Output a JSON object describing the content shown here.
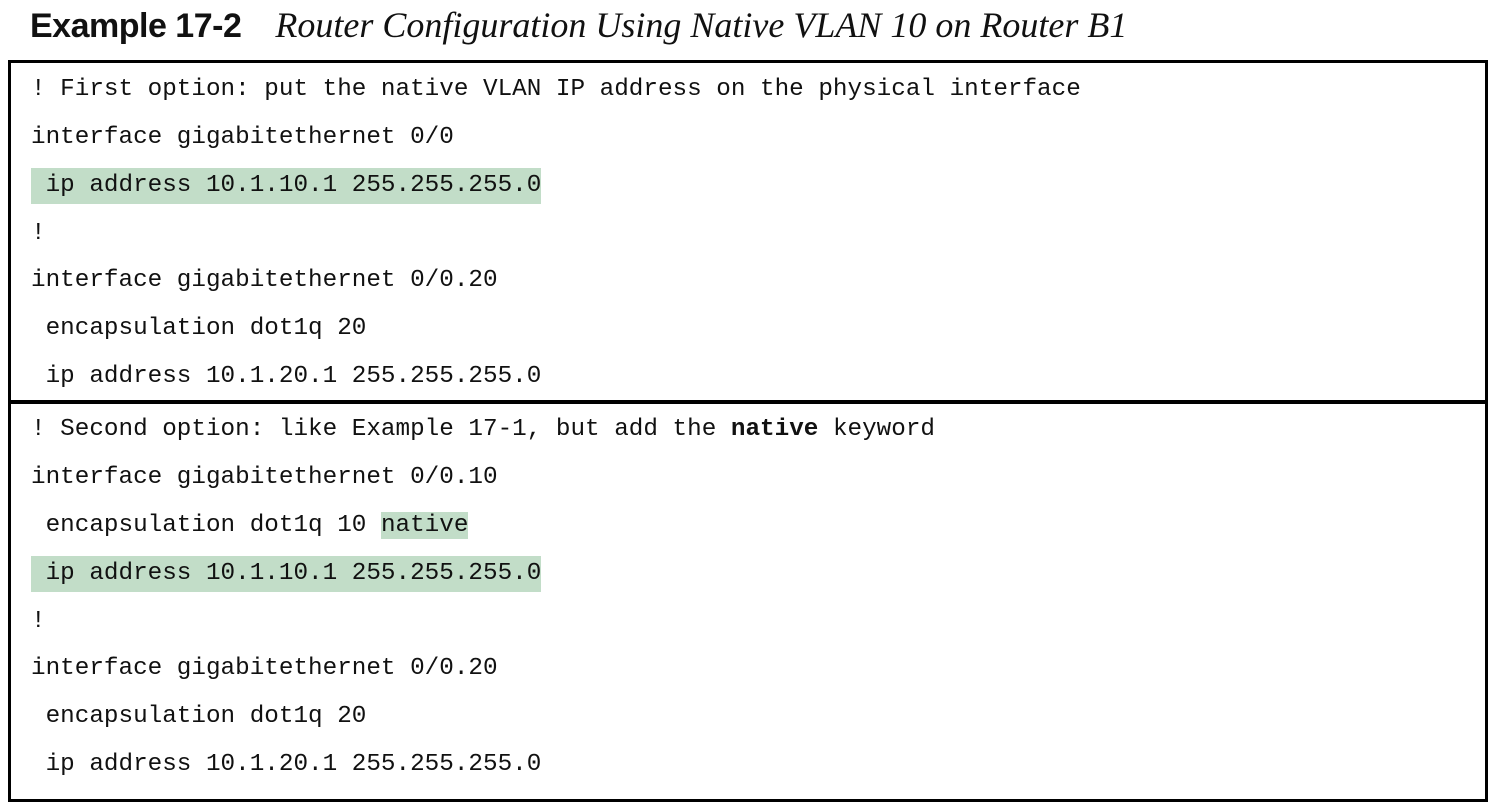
{
  "caption": {
    "label": "Example 17-2",
    "title": "Router Configuration Using Native VLAN 10 on Router B1"
  },
  "colors": {
    "highlight": "#c2ddc8",
    "border": "#000000"
  },
  "block1": {
    "lines": [
      "! First option: put the native VLAN IP address on the physical interface",
      "interface gigabitethernet 0/0",
      " ip address 10.1.10.1 255.255.255.0",
      "!",
      "interface gigabitethernet 0/0.20",
      " encapsulation dot1q 20",
      " ip address 10.1.20.1 255.255.255.0"
    ]
  },
  "block2": {
    "comment_prefix": "! Second option: like Example 17-1, but add the ",
    "comment_keyword": "native",
    "comment_suffix": " keyword",
    "lines": [
      "interface gigabitethernet 0/0.10",
      " encapsulation dot1q 10 ",
      "native",
      " ip address 10.1.10.1 255.255.255.0",
      "!",
      "interface gigabitethernet 0/0.20",
      " encapsulation dot1q 20",
      " ip address 10.1.20.1 255.255.255.0"
    ]
  }
}
